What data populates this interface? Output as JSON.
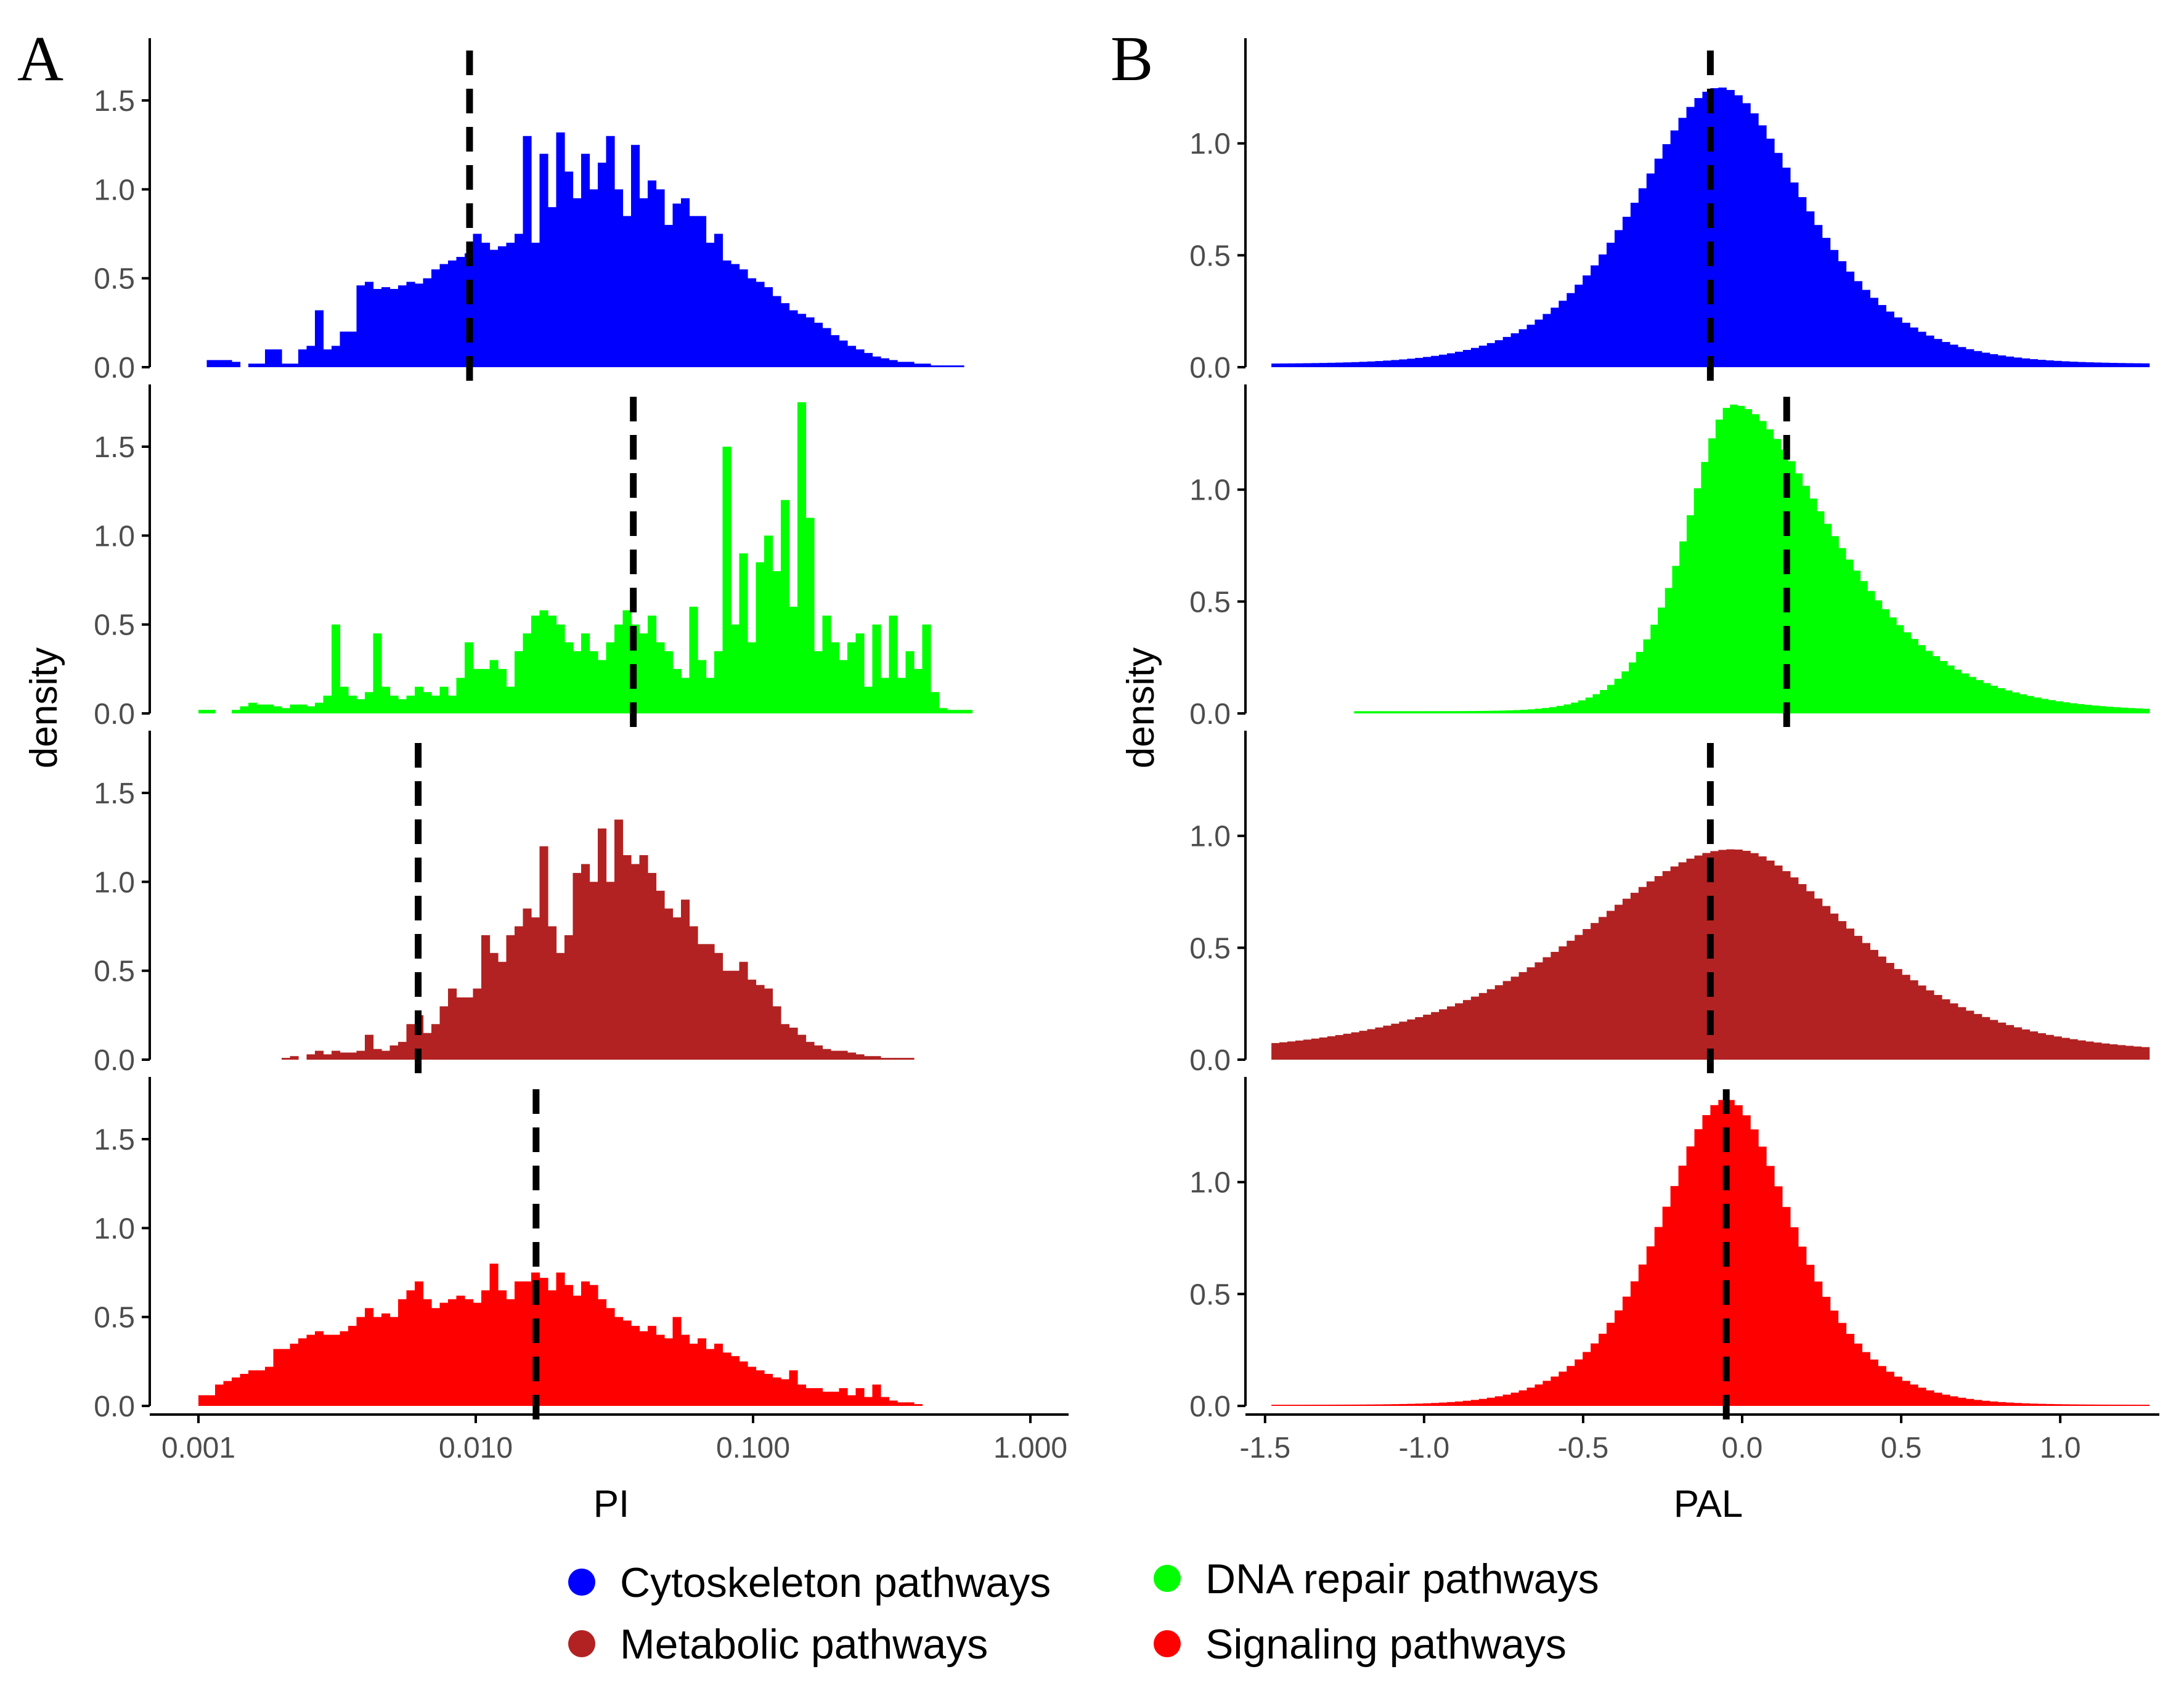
{
  "colors": {
    "cytoskeleton": "#0000ff",
    "dna_repair": "#00ff00",
    "metabolic": "#b22222",
    "signaling": "#ff0000",
    "axis": "#000000",
    "tick_text": "#4d4d4d",
    "median_line": "#000000"
  },
  "legend": {
    "entries": [
      {
        "label": "Cytoskeleton pathways",
        "color": "#0000ff"
      },
      {
        "label": "DNA repair pathways",
        "color": "#00ff00"
      },
      {
        "label": "Metabolic pathways",
        "color": "#b22222"
      },
      {
        "label": "Signaling pathways",
        "color": "#ff0000"
      }
    ]
  },
  "chart_data": [
    {
      "panel_label": "A",
      "type": "histogram",
      "x_scale": "log10",
      "xlabel": "PI",
      "ylabel": "density",
      "xlim": [
        0.001,
        1.0
      ],
      "x_ticks": [
        0.001,
        0.01,
        0.1,
        1.0
      ],
      "x_tick_labels": [
        "0.001",
        "0.010",
        "0.100",
        "1.000"
      ],
      "ylim": [
        0,
        1.85
      ],
      "y_ticks": [
        0,
        0.5,
        1.0,
        1.5
      ],
      "y_tick_labels": [
        "0.0",
        "0.5",
        "1.0",
        "1.5"
      ],
      "series": [
        {
          "name": "Cytoskeleton pathways",
          "color": "#0000ff",
          "bin_start_log10": -3.0,
          "bin_end_log10": 0.0,
          "median": 0.0095,
          "density": [
            0,
            0.04,
            0.04,
            0.04,
            0.03,
            0,
            0.02,
            0.02,
            0.1,
            0.1,
            0.02,
            0.02,
            0.1,
            0.12,
            0.32,
            0.1,
            0.12,
            0.2,
            0.2,
            0.46,
            0.48,
            0.44,
            0.45,
            0.44,
            0.46,
            0.48,
            0.47,
            0.5,
            0.55,
            0.58,
            0.6,
            0.62,
            0.64,
            0.75,
            0.7,
            0.66,
            0.68,
            0.7,
            0.75,
            1.3,
            0.7,
            1.2,
            0.9,
            1.32,
            1.1,
            0.95,
            1.2,
            1.0,
            1.15,
            1.3,
            1.0,
            0.85,
            1.25,
            0.95,
            1.05,
            1.0,
            0.8,
            0.92,
            0.95,
            0.85,
            0.85,
            0.7,
            0.75,
            0.6,
            0.58,
            0.55,
            0.5,
            0.48,
            0.45,
            0.4,
            0.36,
            0.32,
            0.3,
            0.28,
            0.25,
            0.22,
            0.18,
            0.15,
            0.12,
            0.1,
            0.08,
            0.06,
            0.05,
            0.04,
            0.03,
            0.03,
            0.02,
            0.02,
            0.01,
            0.01,
            0.01,
            0.01,
            0,
            0,
            0,
            0,
            0,
            0,
            0,
            0
          ]
        },
        {
          "name": "DNA repair pathways",
          "color": "#00ff00",
          "bin_start_log10": -3.0,
          "bin_end_log10": 0.0,
          "median": 0.037,
          "density": [
            0.02,
            0.02,
            0,
            0,
            0.02,
            0.04,
            0.06,
            0.05,
            0.05,
            0.04,
            0.03,
            0.05,
            0.05,
            0.04,
            0.06,
            0.1,
            0.5,
            0.15,
            0.1,
            0.08,
            0.12,
            0.45,
            0.15,
            0.1,
            0.08,
            0.1,
            0.15,
            0.12,
            0.1,
            0.15,
            0.1,
            0.2,
            0.4,
            0.25,
            0.25,
            0.3,
            0.25,
            0.15,
            0.35,
            0.45,
            0.55,
            0.58,
            0.55,
            0.5,
            0.4,
            0.35,
            0.45,
            0.35,
            0.3,
            0.4,
            0.5,
            0.58,
            0.5,
            0.45,
            0.55,
            0.4,
            0.35,
            0.25,
            0.2,
            0.6,
            0.3,
            0.2,
            0.35,
            1.5,
            0.5,
            0.9,
            0.4,
            0.85,
            1.0,
            0.8,
            1.2,
            0.6,
            1.75,
            1.1,
            0.35,
            0.55,
            0.4,
            0.3,
            0.4,
            0.45,
            0.15,
            0.5,
            0.2,
            0.55,
            0.2,
            0.35,
            0.25,
            0.5,
            0.12,
            0.03,
            0.02,
            0.02,
            0.02,
            0,
            0,
            0,
            0,
            0,
            0,
            0
          ]
        },
        {
          "name": "Metabolic pathways",
          "color": "#b22222",
          "bin_start_log10": -3.0,
          "bin_end_log10": 0.0,
          "median": 0.0062,
          "density": [
            0,
            0,
            0,
            0,
            0,
            0,
            0,
            0,
            0,
            0,
            0.01,
            0.02,
            0,
            0.03,
            0.05,
            0.03,
            0.05,
            0.04,
            0.04,
            0.05,
            0.14,
            0.06,
            0.05,
            0.08,
            0.1,
            0.2,
            0.25,
            0.15,
            0.2,
            0.3,
            0.4,
            0.35,
            0.35,
            0.4,
            0.7,
            0.6,
            0.55,
            0.7,
            0.75,
            0.85,
            0.8,
            1.2,
            0.75,
            0.6,
            0.7,
            1.05,
            1.1,
            1.0,
            1.3,
            1.0,
            1.35,
            1.15,
            1.1,
            1.15,
            1.05,
            0.95,
            0.85,
            0.8,
            0.9,
            0.75,
            0.65,
            0.65,
            0.6,
            0.5,
            0.5,
            0.55,
            0.45,
            0.42,
            0.4,
            0.3,
            0.2,
            0.18,
            0.14,
            0.1,
            0.08,
            0.06,
            0.05,
            0.05,
            0.04,
            0.03,
            0.02,
            0.02,
            0.01,
            0.01,
            0.01,
            0.01,
            0,
            0,
            0,
            0,
            0,
            0,
            0,
            0,
            0,
            0,
            0,
            0,
            0,
            0
          ]
        },
        {
          "name": "Signaling pathways",
          "color": "#ff0000",
          "bin_start_log10": -3.0,
          "bin_end_log10": 0.0,
          "median": 0.0165,
          "density": [
            0.06,
            0.06,
            0.12,
            0.14,
            0.16,
            0.18,
            0.2,
            0.2,
            0.22,
            0.32,
            0.32,
            0.35,
            0.38,
            0.4,
            0.42,
            0.4,
            0.4,
            0.42,
            0.45,
            0.5,
            0.55,
            0.5,
            0.52,
            0.5,
            0.6,
            0.65,
            0.7,
            0.6,
            0.55,
            0.58,
            0.6,
            0.62,
            0.6,
            0.58,
            0.65,
            0.8,
            0.65,
            0.6,
            0.7,
            0.7,
            0.75,
            0.72,
            0.65,
            0.75,
            0.68,
            0.62,
            0.7,
            0.68,
            0.6,
            0.55,
            0.5,
            0.48,
            0.45,
            0.42,
            0.45,
            0.4,
            0.38,
            0.5,
            0.4,
            0.35,
            0.38,
            0.32,
            0.35,
            0.3,
            0.28,
            0.25,
            0.22,
            0.2,
            0.18,
            0.16,
            0.15,
            0.2,
            0.12,
            0.1,
            0.1,
            0.08,
            0.08,
            0.1,
            0.06,
            0.1,
            0.05,
            0.12,
            0.05,
            0.03,
            0.02,
            0.02,
            0.01,
            0,
            0,
            0,
            0,
            0,
            0,
            0,
            0,
            0,
            0,
            0,
            0,
            0
          ]
        }
      ]
    },
    {
      "panel_label": "B",
      "type": "histogram",
      "x_scale": "linear",
      "xlabel": "PAL",
      "ylabel": "density",
      "xlim": [
        -1.55,
        1.3
      ],
      "x_ticks": [
        -1.5,
        -1.0,
        -0.5,
        0.0,
        0.5,
        1.0
      ],
      "x_tick_labels": [
        "-1.5",
        "-1.0",
        "-0.5",
        "0.0",
        "0.5",
        "1.0"
      ],
      "ylim": [
        0,
        1.47
      ],
      "y_ticks": [
        0,
        0.5,
        1.0
      ],
      "y_tick_labels": [
        "0.0",
        "0.5",
        "1.0"
      ],
      "series": [
        {
          "name": "Cytoskeleton pathways",
          "color": "#0000ff",
          "bin_start": -1.48,
          "bin_end": 1.28,
          "median": -0.1,
          "curve": {
            "peak": 1.25,
            "center": -0.07,
            "sigma_left": 0.29,
            "sigma_right": 0.29,
            "tail_floor": 0.015
          }
        },
        {
          "name": "DNA repair pathways",
          "color": "#00ff00",
          "bin_start": -1.22,
          "bin_end": 1.28,
          "median": 0.14,
          "curve": {
            "peak": 1.38,
            "center": -0.03,
            "sigma_left": 0.16,
            "sigma_right": 0.34,
            "tail_floor": 0.01
          }
        },
        {
          "name": "Metabolic pathways",
          "color": "#b22222",
          "bin_start": -1.48,
          "bin_end": 1.28,
          "median": -0.1,
          "curve": {
            "peak": 0.94,
            "center": -0.03,
            "sigma_left": 0.52,
            "sigma_right": 0.42,
            "tail_floor": 0.03
          }
        },
        {
          "name": "Signaling pathways",
          "color": "#ff0000",
          "bin_start": -1.48,
          "bin_end": 1.28,
          "median": -0.05,
          "curve": {
            "peak": 1.37,
            "center": -0.05,
            "sigma_left": 0.23,
            "sigma_right": 0.23,
            "tail_floor": 0.005
          }
        }
      ]
    }
  ]
}
